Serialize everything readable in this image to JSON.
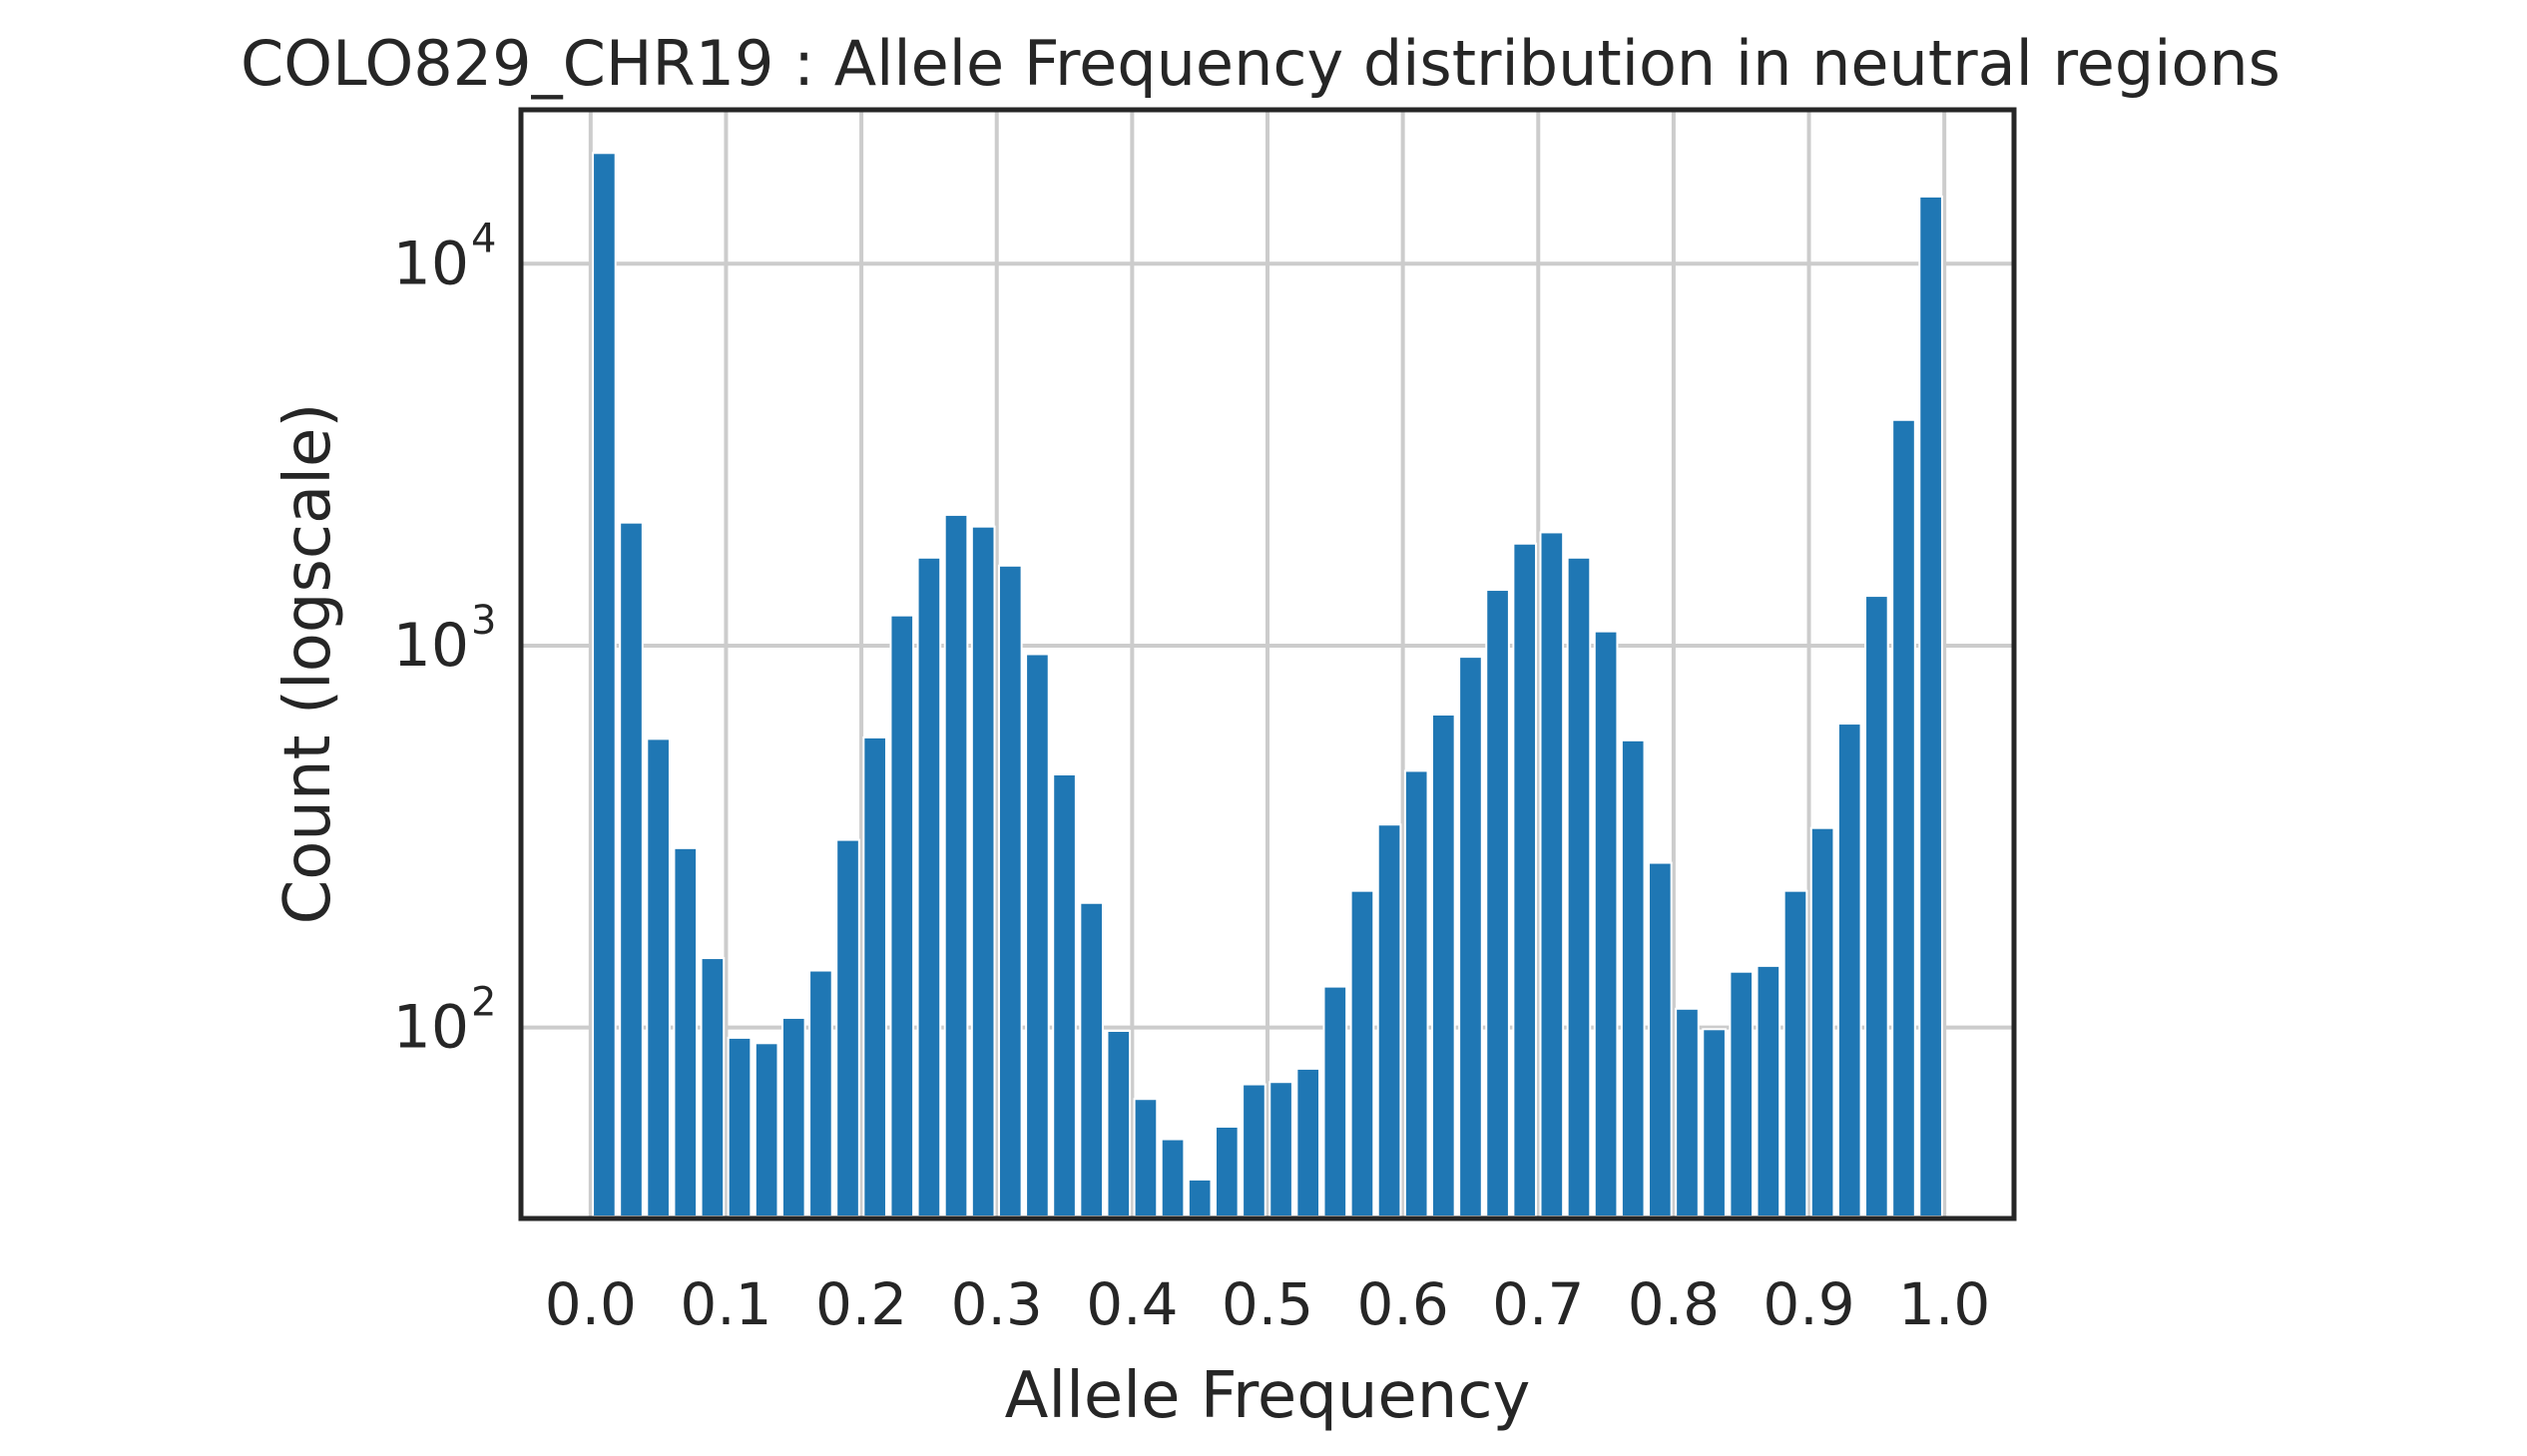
{
  "chart_data": {
    "type": "bar",
    "title": "COLO829_CHR19 : Allele Frequency distribution in neutral regions",
    "xlabel": "Allele Frequency",
    "ylabel": "Count (logscale)",
    "yscale": "log",
    "xlim": [
      -0.05,
      1.05
    ],
    "ylim": [
      32,
      25000
    ],
    "grid": true,
    "bar_color": "#1f77b4",
    "bar_width": 0.0167,
    "x_ticks": [
      "0.0",
      "0.1",
      "0.2",
      "0.3",
      "0.4",
      "0.5",
      "0.6",
      "0.7",
      "0.8",
      "0.9",
      "1.0"
    ],
    "y_ticks": [
      {
        "value": 100,
        "base": "10",
        "exp": "2"
      },
      {
        "value": 1000,
        "base": "10",
        "exp": "3"
      },
      {
        "value": 10000,
        "base": "10",
        "exp": "4"
      }
    ],
    "x": [
      0.01,
      0.03,
      0.05,
      0.07,
      0.09,
      0.11,
      0.13,
      0.15,
      0.17,
      0.19,
      0.21,
      0.23,
      0.25,
      0.27,
      0.29,
      0.31,
      0.33,
      0.35,
      0.37,
      0.39,
      0.41,
      0.43,
      0.45,
      0.47,
      0.49,
      0.51,
      0.53,
      0.55,
      0.57,
      0.59,
      0.61,
      0.63,
      0.65,
      0.67,
      0.69,
      0.71,
      0.73,
      0.75,
      0.77,
      0.79,
      0.81,
      0.83,
      0.85,
      0.87,
      0.89,
      0.91,
      0.93,
      0.95,
      0.97,
      0.99
    ],
    "values": [
      19500,
      2100,
      570,
      295,
      152,
      94,
      91,
      106,
      141,
      310,
      575,
      1200,
      1700,
      2200,
      2050,
      1620,
      950,
      460,
      212,
      98,
      65,
      51,
      40,
      55,
      71,
      72,
      78,
      128,
      228,
      340,
      470,
      660,
      935,
      1400,
      1850,
      1980,
      1700,
      1090,
      565,
      270,
      112,
      99,
      140,
      145,
      228,
      333,
      625,
      1350,
      3900,
      15000
    ]
  }
}
